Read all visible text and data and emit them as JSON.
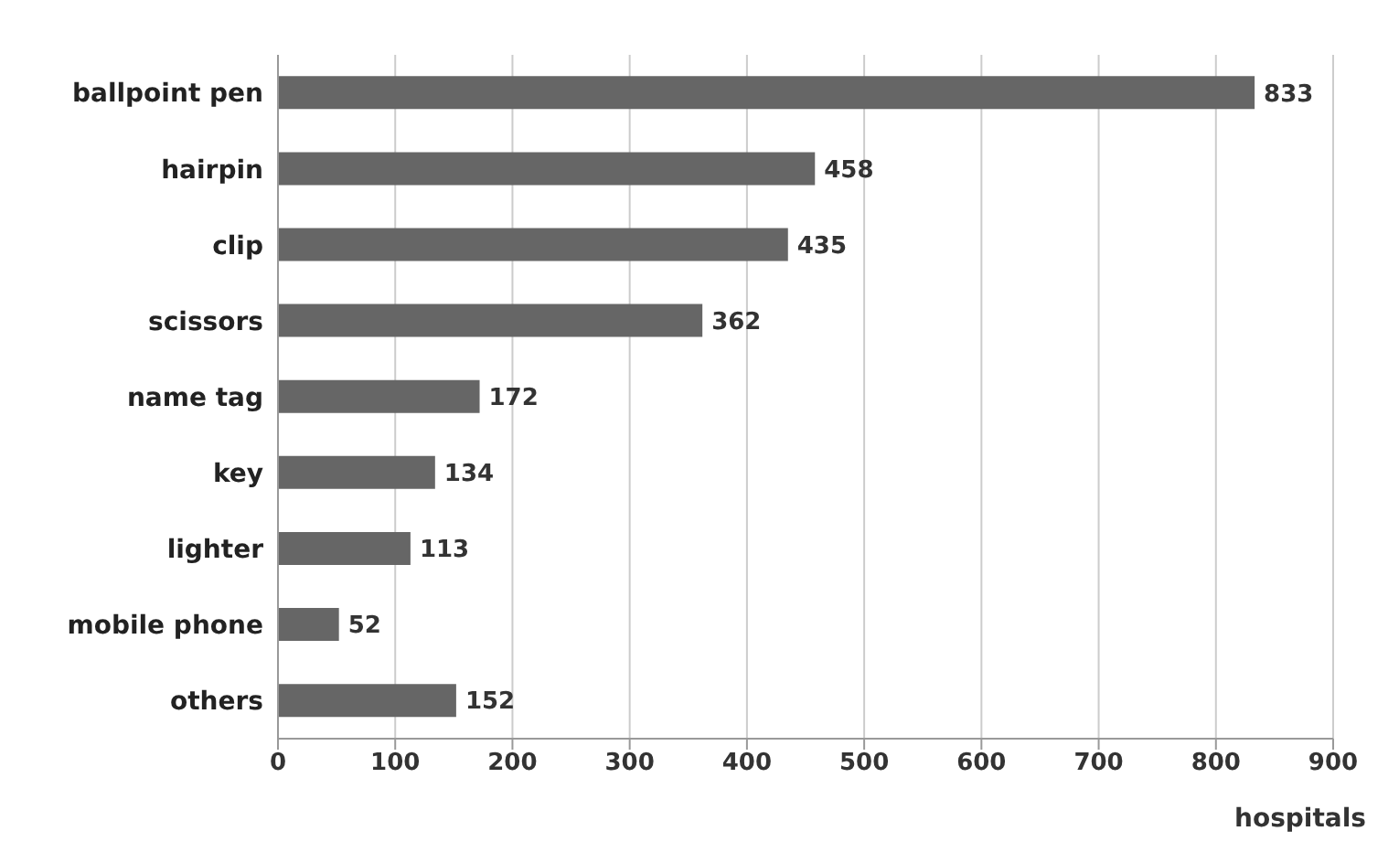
{
  "chart_data": {
    "type": "bar",
    "orientation": "horizontal",
    "xlabel": "hospitals",
    "categories": [
      "ballpoint pen",
      "hairpin",
      "clip",
      "scissors",
      "name tag",
      "key",
      "lighter",
      "mobile phone",
      "others"
    ],
    "values": [
      833,
      458,
      435,
      362,
      172,
      134,
      113,
      52,
      152
    ],
    "color": "#666666",
    "xlim": [
      0,
      900
    ],
    "xticks": [
      0,
      100,
      200,
      300,
      400,
      500,
      600,
      700,
      800,
      900
    ],
    "grid": "x",
    "data_labels": true
  }
}
